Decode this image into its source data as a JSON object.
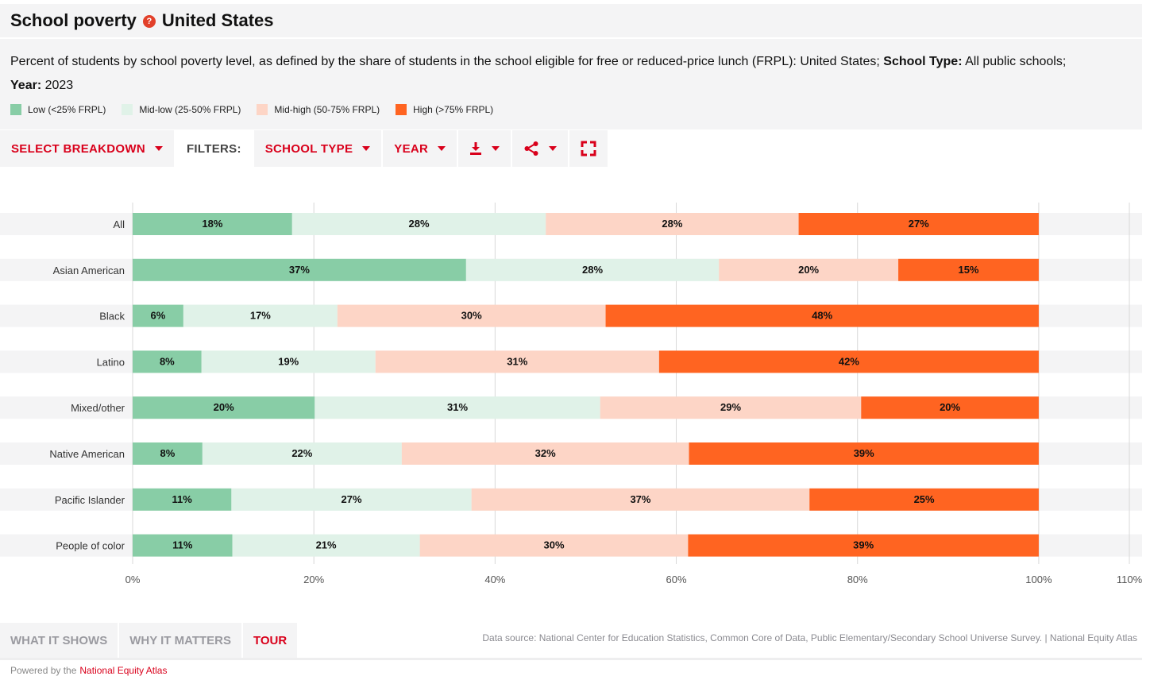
{
  "header": {
    "title": "School poverty",
    "help_icon": "question-icon",
    "geography": "United States",
    "subtitle_text": "Percent of students by school poverty level, as defined by the share of students in the school eligible for free or reduced-price lunch (FRPL): United States;",
    "school_type_label": "School Type:",
    "school_type_value": "All public schools;",
    "year_label": "Year:",
    "year_value": "2023"
  },
  "legend": [
    {
      "label": "Low (<25% FRPL)",
      "color": "#88cda6"
    },
    {
      "label": "Mid-low (25-50% FRPL)",
      "color": "#e0f2e8"
    },
    {
      "label": "Mid-high (50-75% FRPL)",
      "color": "#fdd5c6"
    },
    {
      "label": "High (>75% FRPL)",
      "color": "#ff6421"
    }
  ],
  "toolbar": {
    "breakdown": "SELECT BREAKDOWN",
    "filters": "FILTERS:",
    "school_type": "SCHOOL TYPE",
    "year": "YEAR",
    "download_icon": "download-icon",
    "share_icon": "share-icon",
    "fullscreen_icon": "fullscreen-icon"
  },
  "chart_data": {
    "type": "bar",
    "orientation": "horizontal",
    "stacked": true,
    "categories": [
      "All",
      "Asian American",
      "Black",
      "Latino",
      "Mixed/other",
      "Native American",
      "Pacific Islander",
      "People of color"
    ],
    "series": [
      {
        "name": "Low (<25% FRPL)",
        "color": "#88cda6",
        "values": [
          17.6,
          36.8,
          5.6,
          7.6,
          20.1,
          7.7,
          10.9,
          11.0
        ],
        "labels": [
          "18%",
          "37%",
          "6%",
          "8%",
          "20%",
          "8%",
          "11%",
          "11%"
        ]
      },
      {
        "name": "Mid-low (25-50% FRPL)",
        "color": "#e0f2e8",
        "values": [
          28.0,
          27.9,
          17.0,
          19.2,
          31.5,
          22.0,
          26.5,
          20.7
        ],
        "labels": [
          "28%",
          "28%",
          "17%",
          "19%",
          "31%",
          "22%",
          "27%",
          "21%"
        ]
      },
      {
        "name": "Mid-high (50-75% FRPL)",
        "color": "#fdd5c6",
        "values": [
          27.9,
          19.8,
          29.6,
          31.3,
          28.8,
          31.7,
          37.3,
          29.6
        ],
        "labels": [
          "28%",
          "20%",
          "30%",
          "31%",
          "29%",
          "32%",
          "37%",
          "30%"
        ]
      },
      {
        "name": "High (>75% FRPL)",
        "color": "#ff6421",
        "values": [
          26.5,
          15.5,
          47.8,
          41.9,
          19.6,
          38.6,
          25.3,
          38.7
        ],
        "labels": [
          "27%",
          "15%",
          "48%",
          "42%",
          "20%",
          "39%",
          "25%",
          "39%"
        ]
      }
    ],
    "xlim": [
      0,
      110
    ],
    "xticks": [
      0,
      20,
      40,
      60,
      80,
      100,
      110
    ],
    "xtick_labels": [
      "0%",
      "20%",
      "40%",
      "60%",
      "80%",
      "100%",
      "110%"
    ],
    "grid": true,
    "legend_position": "top-left"
  },
  "tabs": [
    {
      "label": "WHAT IT SHOWS",
      "active": false
    },
    {
      "label": "WHY IT MATTERS",
      "active": false
    },
    {
      "label": "TOUR",
      "active": true
    }
  ],
  "source": "Data source: National Center for Education Statistics, Common Core of Data, Public Elementary/Secondary School Universe Survey. | National Equity Atlas",
  "footer": {
    "powered_by": "Powered by the",
    "brand": "National Equity Atlas"
  }
}
